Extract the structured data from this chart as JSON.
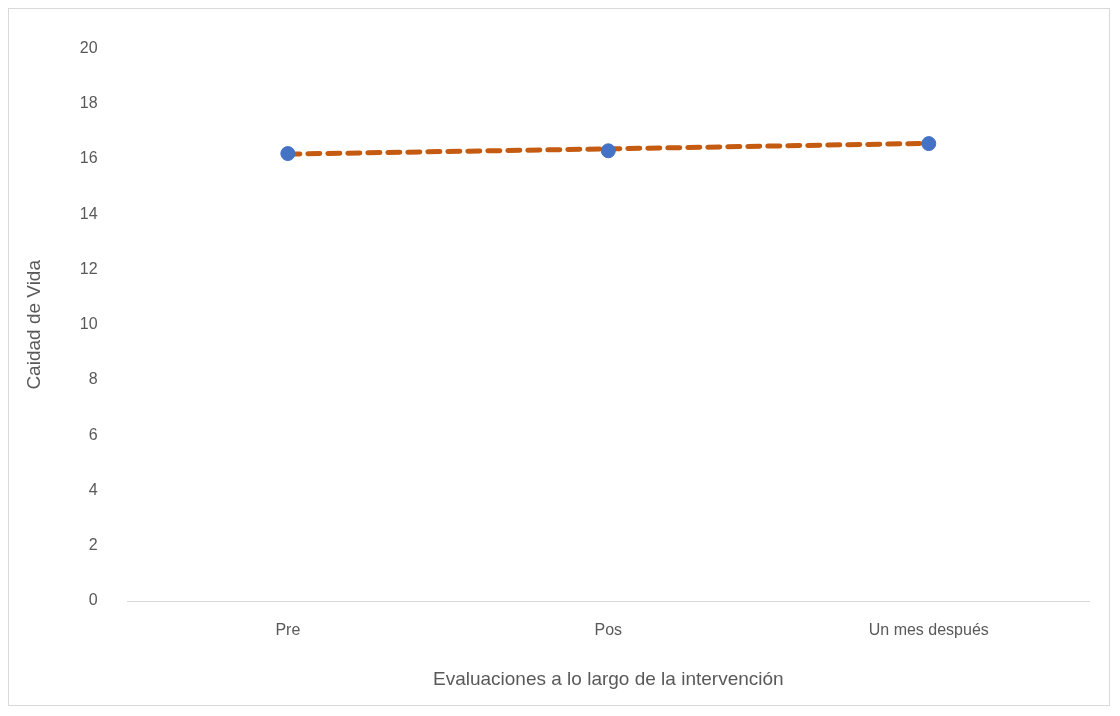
{
  "chart_data": {
    "type": "scatter",
    "xlabel": "Evaluaciones a lo largo de la intervención",
    "ylabel": "Caidad de Vida",
    "categories": [
      "Pre",
      "Pos",
      "Un mes después"
    ],
    "series": [
      {
        "type": "line",
        "color": "#c55a11",
        "values": [
          16.18,
          16.37,
          16.57
        ],
        "marker": "none",
        "line_style": "dashed"
      },
      {
        "color": "#4472c4",
        "values": [
          16.2,
          16.3,
          16.56
        ],
        "marker": "circle"
      }
    ],
    "ylim": [
      0,
      20
    ],
    "yticks": [
      0,
      2,
      4,
      6,
      8,
      10,
      12,
      14,
      16,
      18,
      20
    ],
    "grid": false
  }
}
